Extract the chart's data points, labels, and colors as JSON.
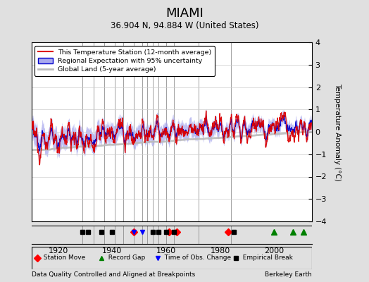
{
  "title": "MIAMI",
  "subtitle": "36.904 N, 94.884 W (United States)",
  "ylabel": "Temperature Anomaly (°C)",
  "xlabel_bottom": "Data Quality Controlled and Aligned at Breakpoints",
  "xlabel_right": "Berkeley Earth",
  "ylim": [
    -4,
    4
  ],
  "xlim": [
    1910,
    2014
  ],
  "yticks": [
    -4,
    -3,
    -2,
    -1,
    0,
    1,
    2,
    3,
    4
  ],
  "xticks": [
    1920,
    1940,
    1960,
    1980,
    2000
  ],
  "background_color": "#e0e0e0",
  "plot_bg_color": "#ffffff",
  "red_color": "#dd0000",
  "blue_color": "#0000cc",
  "blue_fill_color": "#aaaaee",
  "gray_color": "#bbbbbb",
  "vertical_lines_x": [
    1929,
    1933,
    1937,
    1941,
    1944,
    1948,
    1951,
    1953,
    1955,
    1957,
    1960,
    1963,
    1972,
    1984
  ],
  "station_moves": [
    1948,
    1961,
    1964,
    1983
  ],
  "record_gaps": [
    2000,
    2007,
    2011
  ],
  "tobs_changes": [
    1948,
    1951
  ],
  "empirical_breaks": [
    1929,
    1931,
    1936,
    1940,
    1955,
    1957,
    1960,
    1963,
    1985
  ],
  "seed": 12345
}
